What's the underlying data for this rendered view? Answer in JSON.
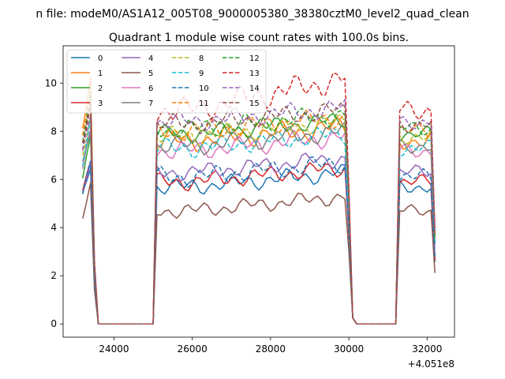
{
  "chart_data": {
    "type": "line",
    "suptitle": "n file: modeM0/AS1A12_005T08_9000005380_38380cztM0_level2_quad_clean",
    "title": "Quadrant 1 module wise count rates with 100.0s bins.",
    "xlabel": "",
    "ylabel": "",
    "x_offset_label": "+4.051e8",
    "xlim": [
      22700,
      32700
    ],
    "ylim": [
      -0.55,
      11.55
    ],
    "x_ticks": [
      24000,
      26000,
      28000,
      30000,
      32000
    ],
    "x_tick_labels": [
      "24000",
      "26000",
      "28000",
      "30000",
      "32000"
    ],
    "y_ticks": [
      0,
      2,
      4,
      6,
      8,
      10
    ],
    "y_tick_labels": [
      "0",
      "2",
      "4",
      "6",
      "8",
      "10"
    ],
    "legend_placement": "top-left",
    "segments": [
      {
        "start": 23200,
        "end": 23600
      },
      {
        "start": 25100,
        "end": 30000
      },
      {
        "start": 31200,
        "end": 32200
      }
    ],
    "series": [
      {
        "name": "0",
        "color": "#1f77b4",
        "style": "solid",
        "level": 5.7,
        "amp": 0.4,
        "peak1": 6.6
      },
      {
        "name": "1",
        "color": "#ff7f0e",
        "style": "solid",
        "level": 7.6,
        "amp": 0.5,
        "peak1": 10.3
      },
      {
        "name": "2",
        "color": "#2ca02c",
        "style": "solid",
        "level": 7.9,
        "amp": 0.4,
        "peak1": 7.8
      },
      {
        "name": "3",
        "color": "#d62728",
        "style": "solid",
        "level": 5.9,
        "amp": 0.4,
        "peak1": 6.9
      },
      {
        "name": "4",
        "color": "#9467bd",
        "style": "solid",
        "level": 6.3,
        "amp": 0.4,
        "peak1": 6.8
      },
      {
        "name": "5",
        "color": "#8c564b",
        "style": "solid",
        "level": 4.7,
        "amp": 0.35,
        "peak1": 5.6
      },
      {
        "name": "6",
        "color": "#e377c2",
        "style": "solid",
        "level": 7.2,
        "amp": 0.45,
        "peak1": 7.9
      },
      {
        "name": "7",
        "color": "#7f7f7f",
        "style": "solid",
        "level": 7.4,
        "amp": 0.45,
        "peak1": 8.1
      },
      {
        "name": "8",
        "color": "#bcbd22",
        "style": "dashed",
        "level": 7.8,
        "amp": 0.45,
        "peak1": 8.8
      },
      {
        "name": "9",
        "color": "#17becf",
        "style": "dashed",
        "level": 7.3,
        "amp": 0.45,
        "peak1": 8.5
      },
      {
        "name": "10",
        "color": "#1f77b4",
        "style": "dashed",
        "level": 6.1,
        "amp": 0.45,
        "peak1": 6.8
      },
      {
        "name": "11",
        "color": "#ff7f0e",
        "style": "dashed",
        "level": 8.0,
        "amp": 0.45,
        "peak1": 9.7
      },
      {
        "name": "12",
        "color": "#2ca02c",
        "style": "dashed",
        "level": 8.1,
        "amp": 0.45,
        "peak1": 9.5
      },
      {
        "name": "13",
        "color": "#d62728",
        "style": "dashed",
        "level": 8.9,
        "amp": 0.6,
        "peak1": 9.0
      },
      {
        "name": "14",
        "color": "#9467bd",
        "style": "dashed",
        "level": 8.4,
        "amp": 0.45,
        "peak1": 8.7
      },
      {
        "name": "15",
        "color": "#8c564b",
        "style": "dashed",
        "level": 8.3,
        "amp": 0.45,
        "peak1": 9.3
      }
    ]
  }
}
